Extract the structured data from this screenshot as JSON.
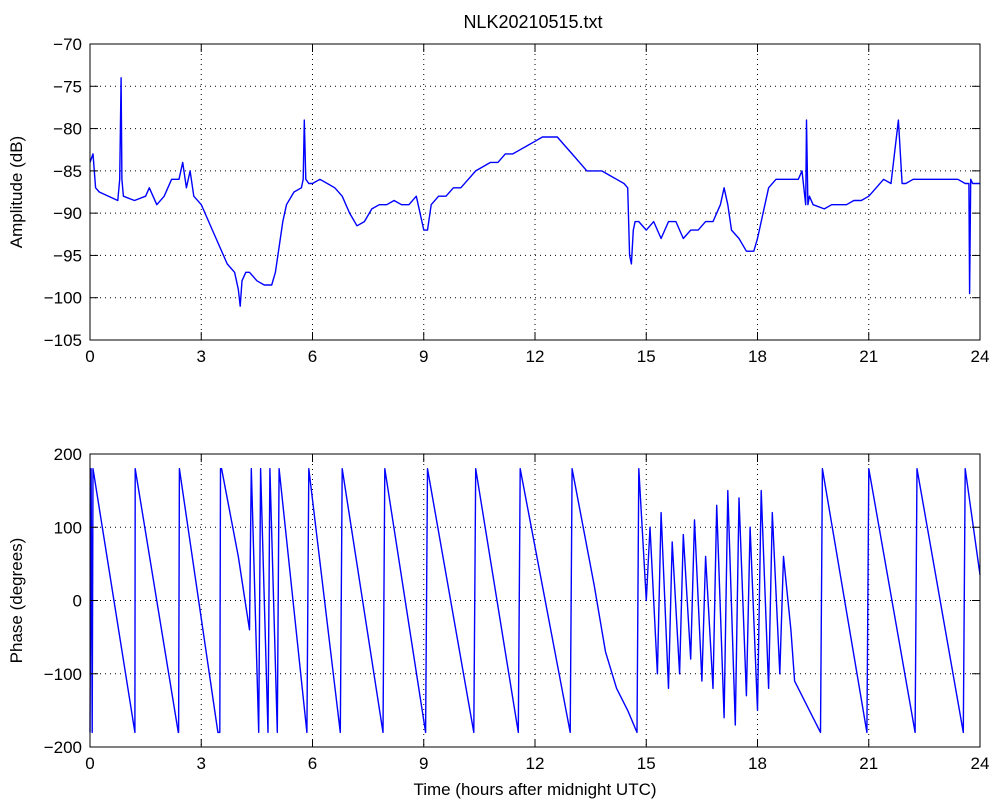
{
  "figure": {
    "title": "NLK20210515.txt"
  },
  "colors": {
    "trace": "#0000ff",
    "axes": "#000000",
    "grid": "#000000",
    "background": "#ffffff"
  },
  "chart_data": [
    {
      "type": "line",
      "title": "NLK20210515.txt",
      "xlabel": "",
      "ylabel": "Amplitude (dB)",
      "xlim": [
        0,
        24
      ],
      "ylim": [
        -105,
        -70
      ],
      "xticks": [
        0,
        3,
        6,
        9,
        12,
        15,
        18,
        21,
        24
      ],
      "yticks": [
        -105,
        -100,
        -95,
        -90,
        -85,
        -80,
        -75,
        -70
      ],
      "grid": true,
      "series": [
        {
          "x": [
            0,
            0.08,
            0.15,
            0.25,
            0.5,
            0.75,
            0.8,
            0.84,
            0.86,
            0.9,
            1.2,
            1.5,
            1.6,
            1.8,
            2.0,
            2.2,
            2.4,
            2.5,
            2.6,
            2.7,
            2.8,
            3.0,
            3.1,
            3.2,
            3.3,
            3.4,
            3.5,
            3.6,
            3.7,
            3.8,
            3.9,
            4.0,
            4.05,
            4.1,
            4.2,
            4.3,
            4.5,
            4.7,
            4.9,
            5.0,
            5.1,
            5.2,
            5.3,
            5.5,
            5.7,
            5.75,
            5.78,
            5.82,
            5.9,
            6.0,
            6.2,
            6.4,
            6.6,
            6.8,
            7.0,
            7.2,
            7.4,
            7.6,
            7.8,
            8.0,
            8.2,
            8.4,
            8.6,
            8.8,
            9.0,
            9.1,
            9.2,
            9.4,
            9.6,
            9.8,
            10.0,
            10.2,
            10.4,
            10.6,
            10.8,
            11.0,
            11.2,
            11.4,
            11.6,
            11.8,
            12.0,
            12.2,
            12.4,
            12.6,
            12.8,
            13.0,
            13.2,
            13.4,
            13.6,
            13.8,
            14.0,
            14.2,
            14.4,
            14.5,
            14.55,
            14.6,
            14.65,
            14.7,
            14.8,
            15.0,
            15.2,
            15.4,
            15.6,
            15.8,
            16.0,
            16.2,
            16.4,
            16.6,
            16.8,
            17.0,
            17.1,
            17.2,
            17.3,
            17.5,
            17.7,
            17.9,
            18.0,
            18.1,
            18.2,
            18.3,
            18.5,
            18.7,
            18.9,
            19.0,
            19.1,
            19.2,
            19.3,
            19.32,
            19.36,
            19.4,
            19.5,
            19.8,
            20.0,
            20.2,
            20.4,
            20.6,
            20.8,
            21.0,
            21.2,
            21.4,
            21.6,
            21.8,
            21.9,
            22.0,
            22.2,
            22.4,
            22.6,
            22.8,
            23.0,
            23.2,
            23.4,
            23.6,
            23.7,
            23.72,
            23.75,
            23.8,
            24.0
          ],
          "values": [
            -84,
            -83,
            -87,
            -87.5,
            -88,
            -88.5,
            -86,
            -74,
            -86,
            -88,
            -88.5,
            -88,
            -87,
            -89,
            -88,
            -86,
            -86,
            -84,
            -87,
            -85,
            -88,
            -89,
            -90,
            -91,
            -92,
            -93,
            -94,
            -95,
            -96,
            -96.5,
            -97,
            -99,
            -101,
            -98,
            -97,
            -97,
            -98,
            -98.5,
            -98.5,
            -97,
            -94,
            -91,
            -89,
            -87.5,
            -87,
            -86,
            -79,
            -86,
            -86.5,
            -86.5,
            -86,
            -86.5,
            -87,
            -88,
            -90,
            -91.5,
            -91,
            -89.5,
            -89,
            -89,
            -88.5,
            -89,
            -89,
            -88,
            -92,
            -92,
            -89,
            -88,
            -88,
            -87,
            -87,
            -86,
            -85,
            -84.5,
            -84,
            -84,
            -83,
            -83,
            -82.5,
            -82,
            -81.5,
            -81,
            -81,
            -81,
            -82,
            -83,
            -84,
            -85,
            -85,
            -85,
            -85.5,
            -86,
            -86.5,
            -87,
            -95,
            -96,
            -92,
            -91,
            -91,
            -92,
            -91,
            -93,
            -91,
            -91,
            -93,
            -92,
            -92,
            -91,
            -91,
            -89,
            -87,
            -89,
            -92,
            -93,
            -94.5,
            -94.5,
            -93,
            -91,
            -89,
            -87,
            -86,
            -86,
            -86,
            -86,
            -86,
            -85,
            -89,
            -79,
            -89,
            -88,
            -89,
            -89.5,
            -89,
            -89,
            -89,
            -88.5,
            -88.5,
            -88,
            -87,
            -86,
            -86.5,
            -79,
            -86.5,
            -86.5,
            -86,
            -86,
            -86,
            -86,
            -86,
            -86,
            -86,
            -86.5,
            -86.5,
            -99.5,
            -86,
            -86.5,
            -86.5
          ]
        }
      ]
    },
    {
      "type": "line",
      "title": "",
      "xlabel": "Time (hours after midnight UTC)",
      "ylabel": "Phase (degrees)",
      "xlim": [
        0,
        24
      ],
      "ylim": [
        -200,
        200
      ],
      "xticks": [
        0,
        3,
        6,
        9,
        12,
        15,
        18,
        21,
        24
      ],
      "yticks": [
        -200,
        -100,
        0,
        100,
        200
      ],
      "grid": true,
      "series": [
        {
          "x": [
            0,
            0.03,
            0.06,
            0.08,
            1.21,
            1.22,
            2.38,
            2.39,
            2.41,
            3.45,
            3.5,
            3.52,
            3.55,
            4.0,
            4.3,
            4.35,
            4.55,
            4.6,
            4.8,
            4.85,
            5.05,
            5.1,
            5.85,
            5.9,
            6.75,
            6.8,
            7.9,
            7.95,
            9.05,
            9.1,
            10.35,
            10.4,
            11.55,
            11.6,
            12.95,
            13.0,
            13.6,
            13.9,
            14.2,
            14.5,
            14.75,
            14.8,
            15.0,
            15.1,
            15.3,
            15.4,
            15.6,
            15.7,
            15.9,
            16.0,
            16.2,
            16.3,
            16.5,
            16.6,
            16.8,
            16.9,
            17.1,
            17.2,
            17.4,
            17.5,
            17.7,
            17.8,
            18.0,
            18.1,
            18.3,
            18.4,
            18.6,
            18.7,
            18.9,
            19.0,
            19.7,
            19.75,
            20.95,
            21.0,
            22.25,
            22.3,
            23.55,
            23.6,
            24.0
          ],
          "values": [
            -180,
            180,
            -180,
            180,
            -180,
            180,
            -180,
            -180,
            180,
            -180,
            -180,
            180,
            180,
            60,
            -40,
            180,
            -180,
            180,
            -180,
            180,
            -180,
            180,
            -180,
            180,
            -180,
            180,
            -180,
            180,
            -180,
            180,
            -180,
            180,
            -180,
            180,
            -180,
            180,
            20,
            -70,
            -120,
            -150,
            -180,
            180,
            0,
            100,
            -100,
            120,
            -120,
            80,
            -100,
            90,
            -80,
            110,
            -110,
            60,
            -120,
            130,
            -160,
            150,
            -170,
            140,
            -130,
            100,
            -150,
            150,
            -120,
            120,
            -100,
            60,
            -40,
            -110,
            -180,
            180,
            -180,
            180,
            -180,
            180,
            -180,
            180,
            35
          ]
        }
      ]
    }
  ]
}
